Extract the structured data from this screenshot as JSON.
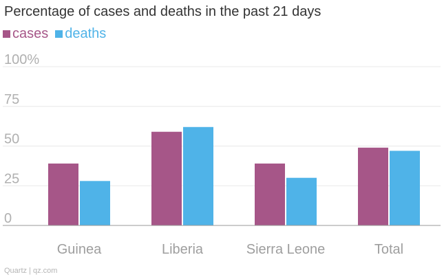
{
  "chart_data": {
    "type": "bar",
    "title": "Percentage of cases and deaths in the past 21 days",
    "categories": [
      "Guinea",
      "Liberia",
      "Sierra Leone",
      "Total"
    ],
    "series": [
      {
        "name": "cases",
        "values": [
          39,
          59,
          39,
          49
        ],
        "color": "#a65688"
      },
      {
        "name": "deaths",
        "values": [
          28,
          62,
          30,
          47
        ],
        "color": "#4fb3e8"
      }
    ],
    "yticks": [
      "0",
      "25",
      "50",
      "75",
      "100%"
    ],
    "ylim": [
      0,
      100
    ],
    "xlabel": "",
    "ylabel": "",
    "legend_position": "top-left"
  },
  "source": "Quartz | qz.com",
  "colors": {
    "gridline": "#e8e8e8",
    "axis": "#999999"
  }
}
